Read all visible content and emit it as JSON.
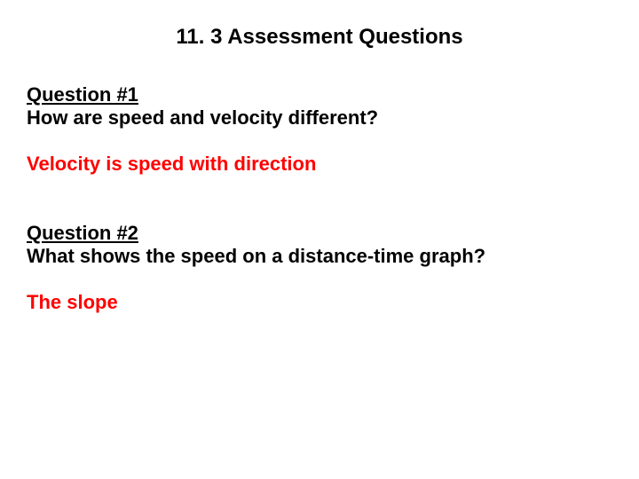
{
  "title": {
    "text": "11. 3 Assessment Questions",
    "fontsize": 24,
    "color": "#000000"
  },
  "questions": [
    {
      "heading": "Question #1",
      "prompt": "How are speed and velocity different?",
      "answer": "Velocity is speed with direction"
    },
    {
      "heading": "Question #2",
      "prompt": "What shows the speed on a distance-time graph?",
      "answer": "The slope"
    }
  ],
  "styles": {
    "body_fontsize": 22,
    "heading_color": "#000000",
    "prompt_color": "#000000",
    "answer_color": "#ff0000",
    "font_family": "Arial"
  }
}
